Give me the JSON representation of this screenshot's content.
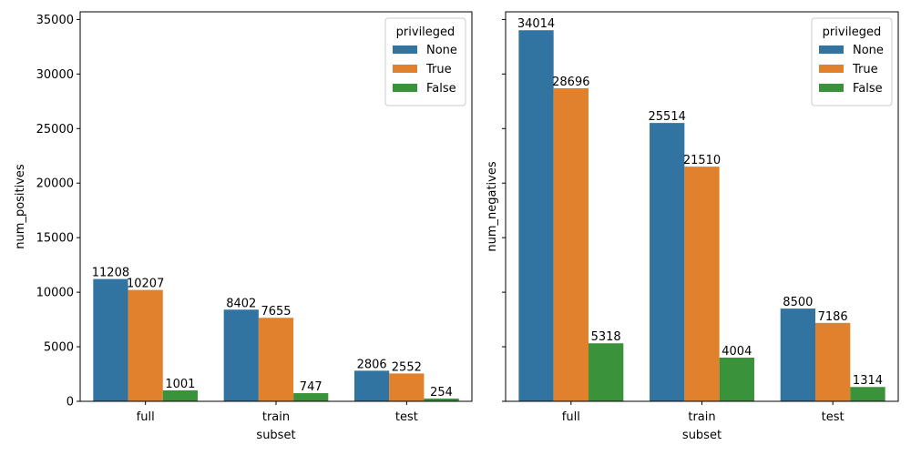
{
  "chart_data": [
    {
      "type": "bar",
      "categories": [
        "full",
        "train",
        "test"
      ],
      "xlabel": "subset",
      "ylabel": "num_positives",
      "ylim": [
        0,
        35700
      ],
      "yticks": [
        "0",
        "5000",
        "10000",
        "15000",
        "20000",
        "25000",
        "30000",
        "35000"
      ],
      "ytick_values": [
        0,
        5000,
        10000,
        15000,
        20000,
        25000,
        30000,
        35000
      ],
      "legend": {
        "title": "privileged",
        "placement": "top-right"
      },
      "series": [
        {
          "name": "None",
          "color": "#3274a1",
          "values": [
            11208,
            8402,
            2806
          ]
        },
        {
          "name": "True",
          "color": "#e1812c",
          "values": [
            10207,
            7655,
            2552
          ]
        },
        {
          "name": "False",
          "color": "#3a923a",
          "values": [
            1001,
            747,
            254
          ]
        }
      ]
    },
    {
      "type": "bar",
      "categories": [
        "full",
        "train",
        "test"
      ],
      "xlabel": "subset",
      "ylabel": "num_negatives",
      "ylim": [
        0,
        35700
      ],
      "yticks": [
        "0",
        "5000",
        "10000",
        "15000",
        "20000",
        "25000",
        "30000",
        "35000"
      ],
      "ytick_values": [
        0,
        5000,
        10000,
        15000,
        20000,
        25000,
        30000,
        35000
      ],
      "legend": {
        "title": "privileged",
        "placement": "top-right"
      },
      "series": [
        {
          "name": "None",
          "color": "#3274a1",
          "values": [
            34014,
            25514,
            8500
          ]
        },
        {
          "name": "True",
          "color": "#e1812c",
          "values": [
            28696,
            21510,
            7186
          ]
        },
        {
          "name": "False",
          "color": "#3a923a",
          "values": [
            5318,
            4004,
            1314
          ]
        }
      ]
    }
  ]
}
